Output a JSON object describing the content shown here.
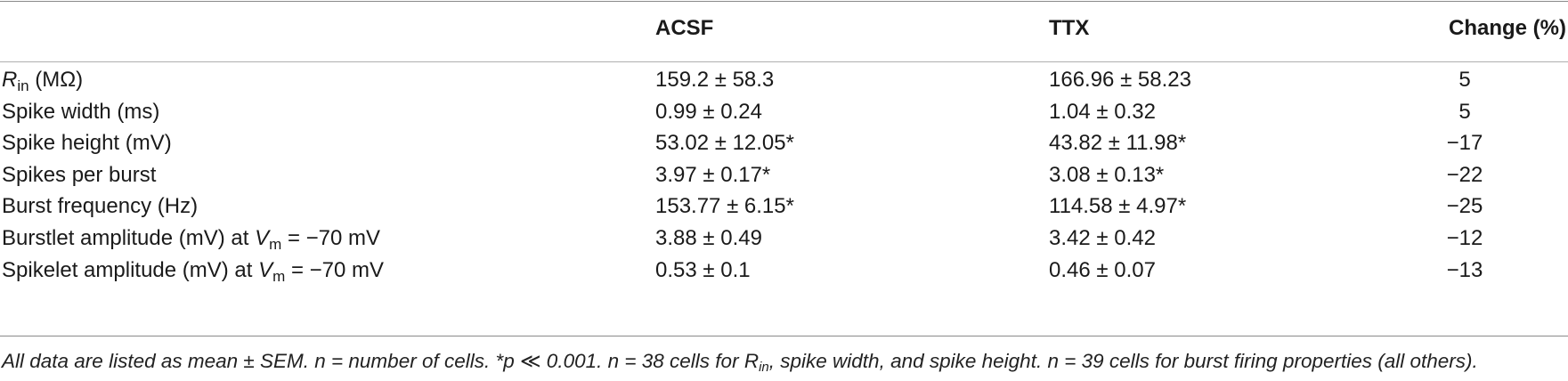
{
  "table": {
    "headers": [
      "",
      "ACSF",
      "TTX",
      "Change (%)"
    ],
    "rows": [
      {
        "label_main": "R",
        "label_sub": "in",
        "label_rest": " (MΩ)",
        "acsf": "159.2 ± 58.3",
        "ttx": "166.96 ± 58.23",
        "change": "5"
      },
      {
        "label": "Spike width (ms)",
        "acsf": "0.99 ± 0.24",
        "ttx": "1.04 ± 0.32",
        "change": "5"
      },
      {
        "label": "Spike height (mV)",
        "acsf": "53.02 ± 12.05*",
        "ttx": "43.82 ± 11.98*",
        "change": "−17"
      },
      {
        "label": "Spikes per burst",
        "acsf": "3.97 ± 0.17*",
        "ttx": "3.08 ± 0.13*",
        "change": "−22"
      },
      {
        "label": "Burst frequency (Hz)",
        "acsf": "153.77 ± 6.15*",
        "ttx": "114.58 ± 4.97*",
        "change": "−25"
      },
      {
        "label_pre": "Burstlet amplitude (mV) at ",
        "label_var": "V",
        "label_sub": "m",
        "label_post": " = −70 mV",
        "acsf": "3.88 ± 0.49",
        "ttx": "3.42 ± 0.42",
        "change": "−12"
      },
      {
        "label_pre": "Spikelet amplitude (mV) at ",
        "label_var": "V",
        "label_sub": "m",
        "label_post": " = −70 mV",
        "acsf": "0.53 ± 0.1",
        "ttx": "0.46 ± 0.07",
        "change": "−13"
      }
    ]
  },
  "footnote": {
    "part1": "All data are listed as mean ±  SEM. n = number of cells. *p ≪ 0.001. n = 38 cells for R",
    "sub": "in",
    "part2": ", spike width, and spike height. n = 39 cells for burst firing properties (all others)."
  }
}
